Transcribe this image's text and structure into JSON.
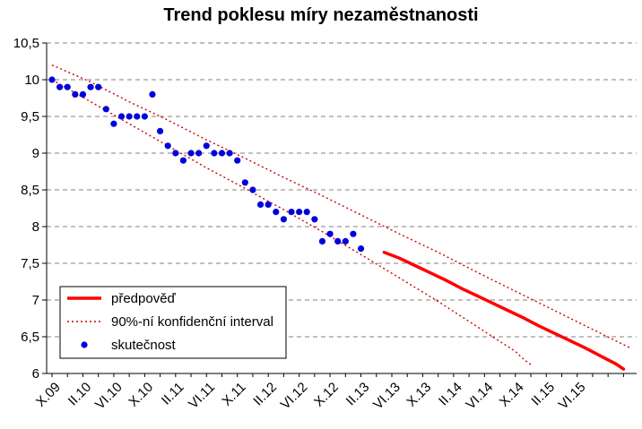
{
  "chart_data": {
    "type": "line",
    "title": "Trend poklesu míry nezaměstnanosti",
    "xlabel": "",
    "ylabel": "",
    "ylim": [
      6,
      10.5
    ],
    "yticks": [
      "10,5",
      "10",
      "9,5",
      "9",
      "8,5",
      "8",
      "7,5",
      "7",
      "6,5",
      "6"
    ],
    "grid": "horizontal dashed",
    "legend_position": "bottom-left",
    "x_tick_labels": [
      "X.09",
      "II.10",
      "VI.10",
      "X.10",
      "II.11",
      "VI.11",
      "X.11",
      "II.12",
      "VI.12",
      "X.12",
      "II.13",
      "VI.13",
      "X.13",
      "II.14",
      "VI.14",
      "X.14",
      "II.15",
      "VI.15"
    ],
    "series": [
      {
        "name": "předpověď",
        "style": "solid",
        "color": "#ff0000",
        "points": [
          [
            43,
            7.65
          ],
          [
            45,
            7.57
          ],
          [
            47,
            7.47
          ],
          [
            49,
            7.37
          ],
          [
            51,
            7.27
          ],
          [
            53,
            7.16
          ],
          [
            55,
            7.06
          ],
          [
            57,
            6.96
          ],
          [
            59,
            6.86
          ],
          [
            61,
            6.76
          ],
          [
            63,
            6.65
          ],
          [
            65,
            6.55
          ],
          [
            67,
            6.45
          ],
          [
            69,
            6.35
          ],
          [
            71,
            6.24
          ],
          [
            73,
            6.13
          ],
          [
            74,
            6.06
          ]
        ]
      },
      {
        "name": "90%-ní konfidenční interval",
        "style": "dotted",
        "color": "#cc0000",
        "upper": [
          [
            0,
            10.2
          ],
          [
            5,
            9.97
          ],
          [
            10,
            9.7
          ],
          [
            15,
            9.45
          ],
          [
            20,
            9.18
          ],
          [
            25,
            8.93
          ],
          [
            30,
            8.67
          ],
          [
            35,
            8.42
          ],
          [
            40,
            8.16
          ],
          [
            45,
            7.9
          ],
          [
            50,
            7.65
          ],
          [
            55,
            7.38
          ],
          [
            60,
            7.12
          ],
          [
            65,
            6.86
          ],
          [
            70,
            6.6
          ],
          [
            75,
            6.34
          ]
        ],
        "lower": [
          [
            0,
            10.0
          ],
          [
            5,
            9.7
          ],
          [
            10,
            9.4
          ],
          [
            15,
            9.1
          ],
          [
            20,
            8.8
          ],
          [
            25,
            8.52
          ],
          [
            30,
            8.23
          ],
          [
            35,
            7.93
          ],
          [
            40,
            7.62
          ],
          [
            45,
            7.3
          ],
          [
            50,
            6.98
          ],
          [
            55,
            6.64
          ],
          [
            60,
            6.3
          ],
          [
            61,
            6.2
          ],
          [
            62,
            6.12
          ]
        ]
      },
      {
        "name": "skutečnost",
        "style": "markers",
        "color": "#0000dd",
        "points": [
          [
            0,
            10.0
          ],
          [
            1,
            9.9
          ],
          [
            2,
            9.9
          ],
          [
            3,
            9.8
          ],
          [
            4,
            9.8
          ],
          [
            5,
            9.9
          ],
          [
            6,
            9.9
          ],
          [
            7,
            9.6
          ],
          [
            8,
            9.4
          ],
          [
            9,
            9.5
          ],
          [
            10,
            9.5
          ],
          [
            11,
            9.5
          ],
          [
            12,
            9.5
          ],
          [
            13,
            9.8
          ],
          [
            14,
            9.3
          ],
          [
            15,
            9.1
          ],
          [
            16,
            9.0
          ],
          [
            17,
            8.9
          ],
          [
            18,
            9.0
          ],
          [
            19,
            9.0
          ],
          [
            20,
            9.1
          ],
          [
            21,
            9.0
          ],
          [
            22,
            9.0
          ],
          [
            23,
            9.0
          ],
          [
            24,
            8.9
          ],
          [
            25,
            8.6
          ],
          [
            26,
            8.5
          ],
          [
            27,
            8.3
          ],
          [
            28,
            8.3
          ],
          [
            29,
            8.2
          ],
          [
            30,
            8.1
          ],
          [
            31,
            8.2
          ],
          [
            32,
            8.2
          ],
          [
            33,
            8.2
          ],
          [
            34,
            8.1
          ],
          [
            35,
            7.8
          ],
          [
            36,
            7.9
          ],
          [
            37,
            7.8
          ],
          [
            38,
            7.8
          ],
          [
            39,
            7.9
          ],
          [
            40,
            7.7
          ]
        ]
      }
    ]
  }
}
